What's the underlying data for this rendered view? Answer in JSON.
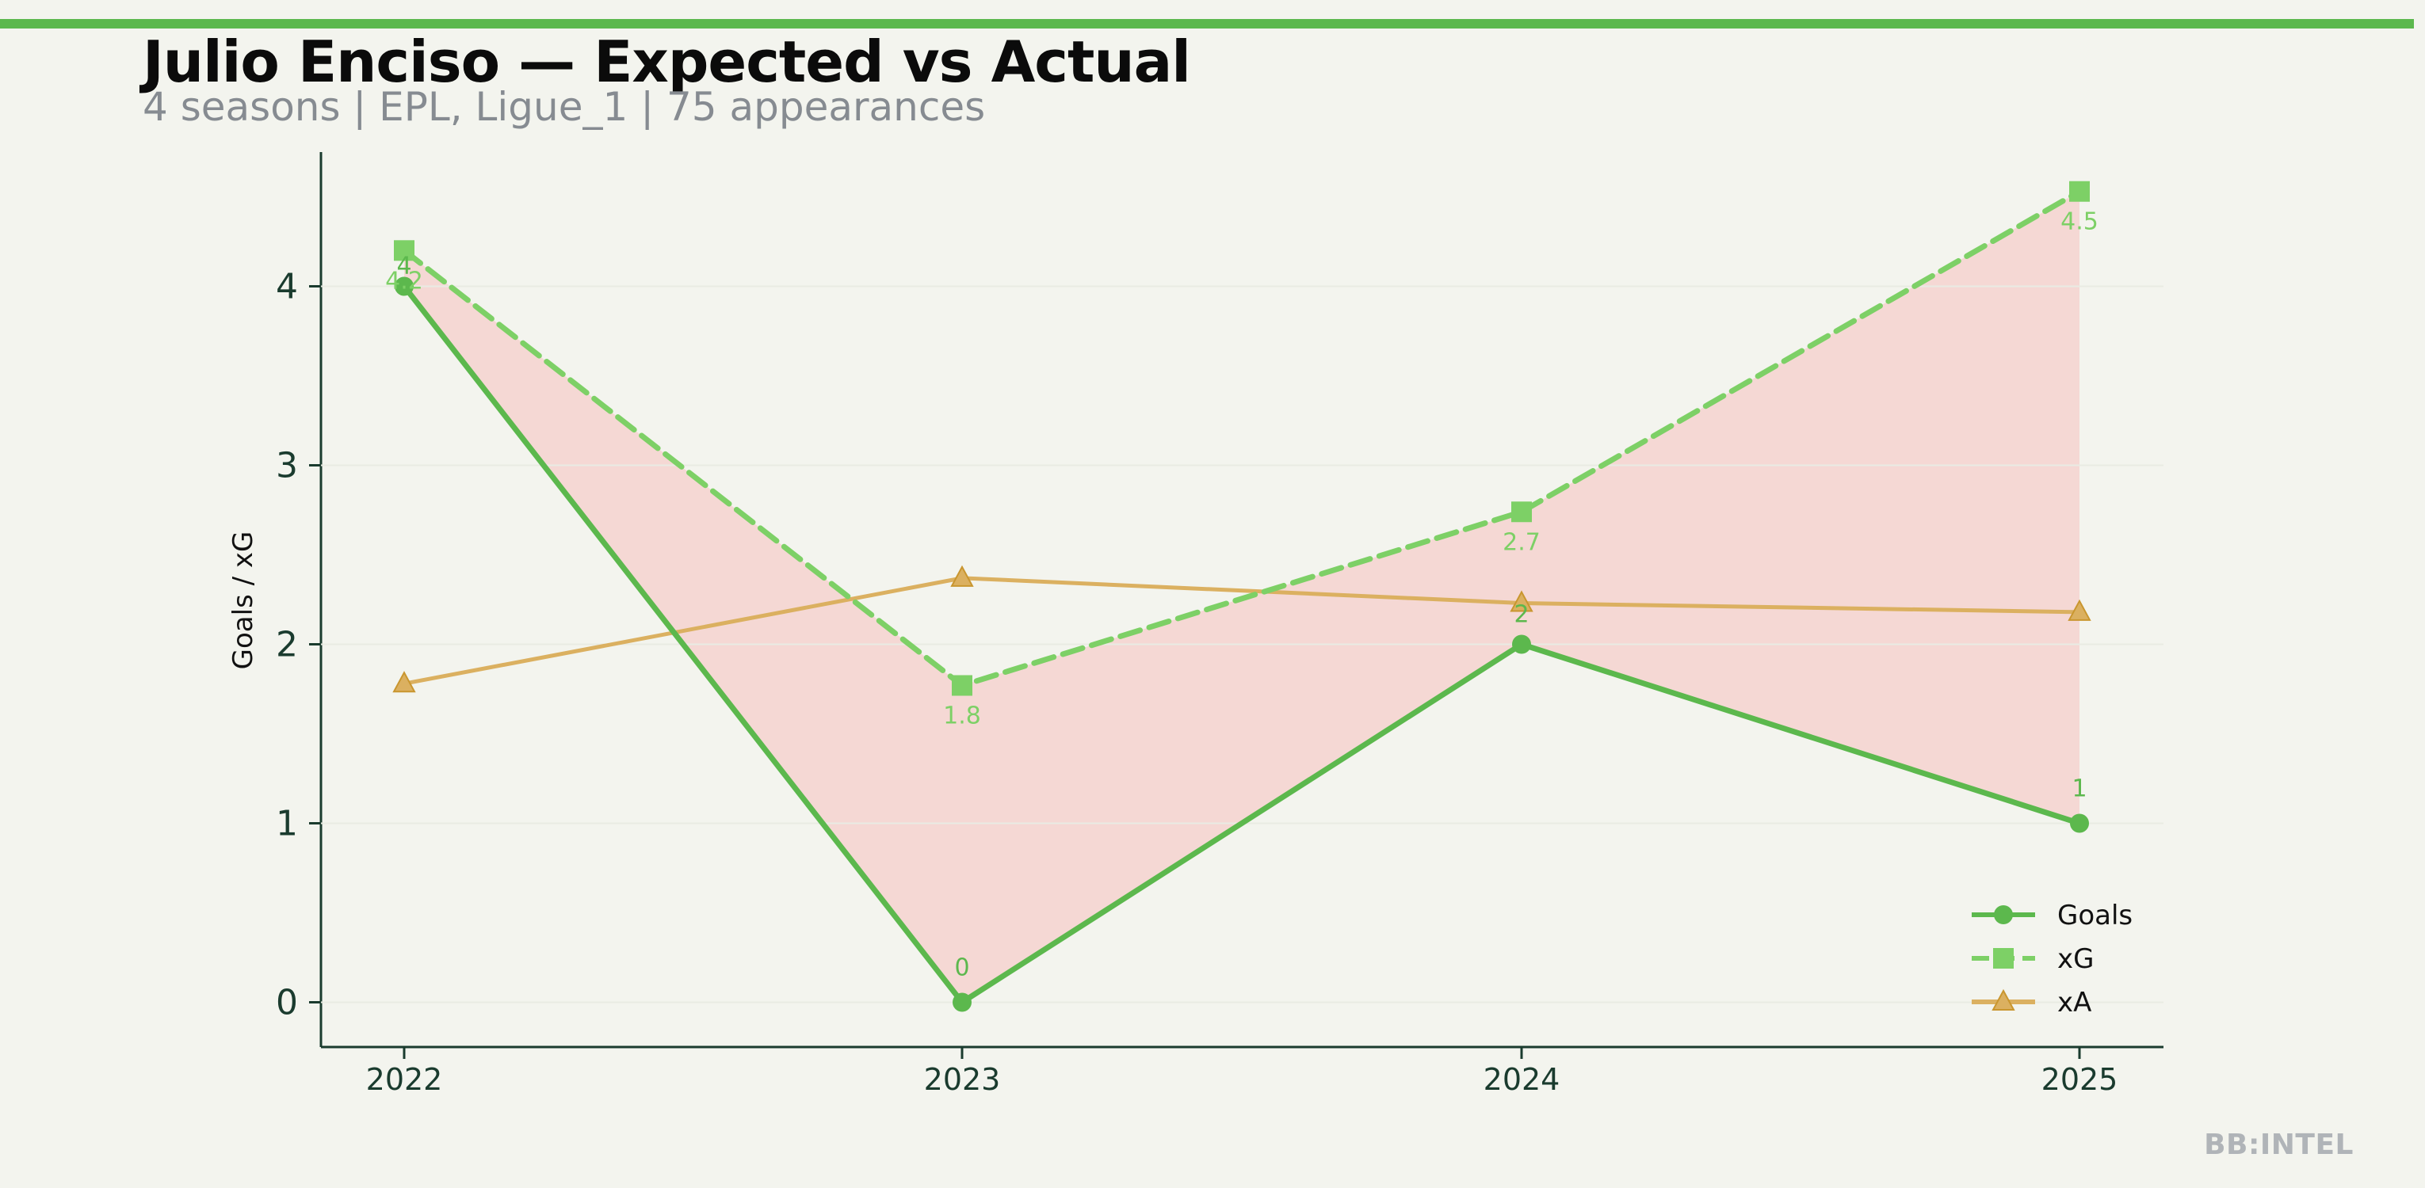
{
  "header": {
    "title": "Julio Enciso — Expected vs Actual",
    "subtitle": "4 seasons | EPL, Ligue_1 | 75 appearances"
  },
  "watermark": "BB:INTEL",
  "colors": {
    "accent": "#5cb84d",
    "goals": "#5cb84d",
    "xg": "#7dd066",
    "xa": "#dbb060",
    "gap_fill": "#f5d5d0",
    "axis": "#1a3b2e",
    "background": "#f3f4ee"
  },
  "chart_data": {
    "type": "line",
    "title": "Julio Enciso — Expected vs Actual",
    "subtitle": "4 seasons | EPL, Ligue_1 | 75 appearances",
    "xlabel": "",
    "ylabel": "Goals / xG",
    "categories": [
      "2022",
      "2023",
      "2024",
      "2025"
    ],
    "ylim": [
      -0.25,
      4.75
    ],
    "yticks": [
      "0",
      "1",
      "2",
      "3",
      "4"
    ],
    "grid": false,
    "legend_position": "bottom-right",
    "series": [
      {
        "name": "Goals",
        "values": [
          4,
          0,
          2,
          1
        ],
        "labels": [
          "4",
          "0",
          "2",
          "1"
        ],
        "marker": "circle",
        "style": "solid"
      },
      {
        "name": "xG",
        "values": [
          4.2,
          1.77,
          2.74,
          4.53
        ],
        "labels": [
          "4.2",
          "1.8",
          "2.7",
          "4.5"
        ],
        "marker": "square",
        "style": "dashed"
      },
      {
        "name": "xA",
        "values": [
          1.78,
          2.37,
          2.23,
          2.18
        ],
        "marker": "triangle",
        "style": "solid"
      }
    ],
    "shaded_region": "between Goals and xG"
  }
}
